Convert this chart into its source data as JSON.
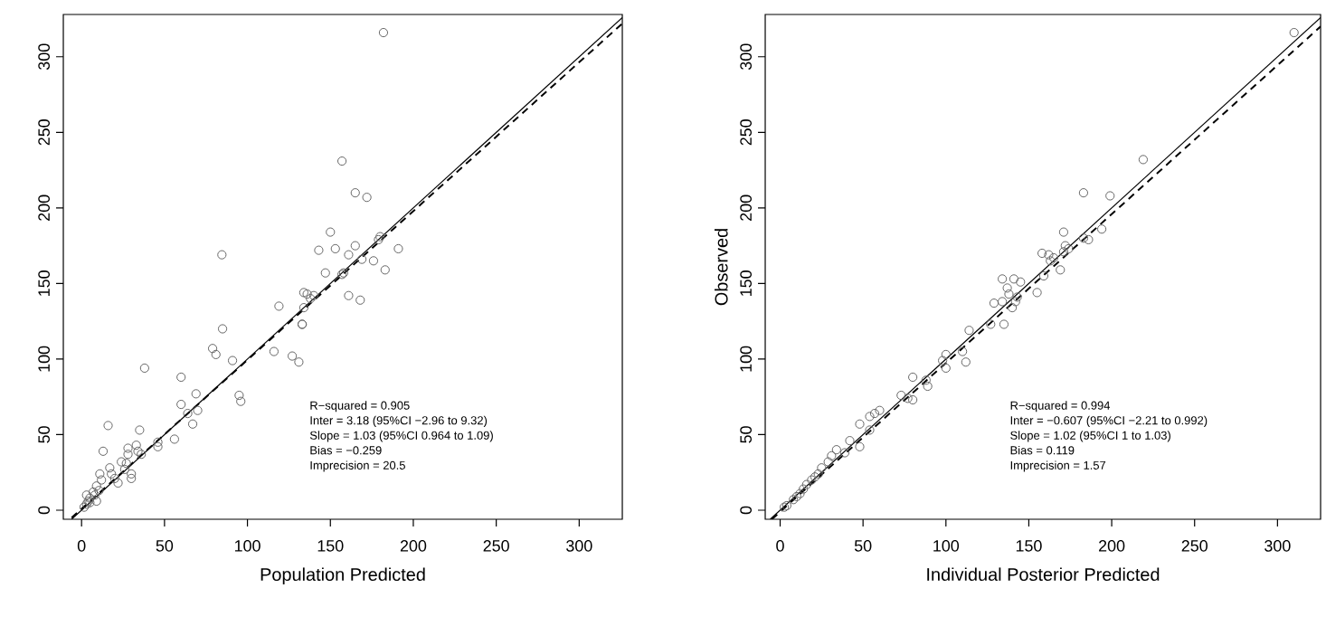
{
  "chart_data": [
    {
      "type": "scatter",
      "xlabel": "Population Predicted",
      "xlim": [
        -11,
        326
      ],
      "ylim": [
        -6,
        328
      ],
      "xticks": [
        0,
        50,
        100,
        150,
        200,
        250,
        300
      ],
      "yticks": [
        0,
        50,
        100,
        150,
        200,
        250,
        300
      ],
      "marker": "circle",
      "grid": false,
      "annotations": [
        "R−squared = 0.905",
        "Inter = 3.18 (95%CI −2.96 to 9.32)",
        "Slope = 1.03 (95%CI 0.964 to 1.09)",
        "Bias = −0.259",
        "Imprecision  = 20.5"
      ],
      "series": [
        {
          "color": "#666666",
          "x": [
            182,
            157,
            165,
            172,
            150,
            84.6,
            153,
            143,
            191,
            165,
            179,
            180,
            161,
            169,
            176,
            157,
            158,
            183,
            161,
            168,
            147,
            134,
            136,
            138,
            140,
            134,
            133,
            133,
            119,
            85,
            79,
            81,
            91,
            116,
            127,
            131,
            38,
            60,
            95,
            96,
            69,
            70,
            67,
            60,
            64,
            56,
            46,
            46,
            35,
            16,
            13,
            33,
            34,
            28,
            28,
            24,
            26,
            30,
            30,
            17,
            18,
            20,
            11,
            12,
            9,
            5,
            3,
            7,
            5,
            9,
            3,
            22,
            27,
            36,
            1.5,
            4,
            8,
            10.5
          ],
          "values": [
            316,
            231,
            210,
            207,
            184,
            169,
            173,
            172,
            173,
            175,
            179,
            181,
            169,
            166,
            165,
            156,
            157,
            159,
            142,
            139,
            157,
            144,
            143,
            140,
            142,
            134,
            123,
            123,
            135,
            120,
            107,
            103,
            99,
            105,
            102,
            98,
            94,
            88,
            76,
            72,
            77,
            66,
            57,
            70,
            64,
            47,
            42,
            45,
            53,
            56,
            39,
            43,
            39,
            41,
            37,
            32,
            27,
            21,
            24,
            28,
            24,
            21,
            24,
            20,
            16,
            8,
            4,
            12,
            5,
            6,
            10,
            18,
            31,
            37,
            2,
            6,
            10,
            13
          ]
        },
        {
          "type": "line",
          "marker": "none",
          "color": "#000000",
          "line_style": "solid",
          "x": [
            -6,
            326
          ],
          "values": [
            -6,
            326
          ]
        },
        {
          "type": "line",
          "marker": "none",
          "color": "#000000",
          "line_style": "dashed",
          "x": [
            -6,
            326
          ],
          "values": [
            -5,
            322
          ]
        }
      ]
    },
    {
      "type": "scatter",
      "xlabel": "Individual Posterior Predicted",
      "ylabel": "Observed",
      "xlim": [
        -9,
        326
      ],
      "ylim": [
        -6,
        328
      ],
      "xticks": [
        0,
        50,
        100,
        150,
        200,
        250,
        300
      ],
      "yticks": [
        0,
        50,
        100,
        150,
        200,
        250,
        300
      ],
      "marker": "circle",
      "grid": false,
      "annotations": [
        "R−squared = 0.994",
        "Inter = −0.607 (95%CI −2.21 to 0.992)",
        "Slope = 1.02 (95%CI 1 to 1.03)",
        "Bias = 0.119",
        "Imprecision  = 1.57"
      ],
      "series": [
        {
          "color": "#666666",
          "x": [
            310,
            219,
            183,
            199,
            194,
            171,
            183,
            186,
            172,
            174,
            171,
            169,
            158,
            162,
            165,
            163,
            159,
            155,
            134,
            141,
            145,
            137,
            138,
            134,
            129,
            140,
            142,
            143,
            135,
            127,
            114,
            110,
            112,
            100,
            100,
            98,
            80,
            89,
            88,
            73,
            77,
            80,
            60,
            57,
            54,
            48,
            54,
            48,
            42,
            39,
            34,
            31,
            29,
            25,
            21,
            16,
            12,
            8,
            4,
            2.5,
            23,
            19,
            14,
            10
          ],
          "values": [
            316,
            232,
            210,
            208,
            186,
            184,
            180,
            179,
            175,
            173,
            171,
            159,
            170,
            169,
            167,
            165,
            155,
            144,
            153,
            153,
            151,
            147,
            143,
            138,
            137,
            134,
            138,
            141,
            123,
            123,
            119,
            105,
            98,
            103,
            94,
            99,
            88,
            82,
            86,
            76,
            74,
            73,
            66,
            64,
            62,
            57,
            53,
            42,
            46,
            38,
            40,
            36,
            32,
            28,
            22,
            17,
            11,
            7,
            3,
            2,
            24,
            20,
            14,
            9
          ]
        },
        {
          "type": "line",
          "marker": "none",
          "color": "#000000",
          "line_style": "solid",
          "x": [
            -6,
            326
          ],
          "values": [
            -6,
            326
          ]
        },
        {
          "type": "line",
          "marker": "none",
          "color": "#000000",
          "line_style": "dashed",
          "x": [
            -5,
            326
          ],
          "values": [
            -6,
            320
          ]
        }
      ]
    }
  ]
}
